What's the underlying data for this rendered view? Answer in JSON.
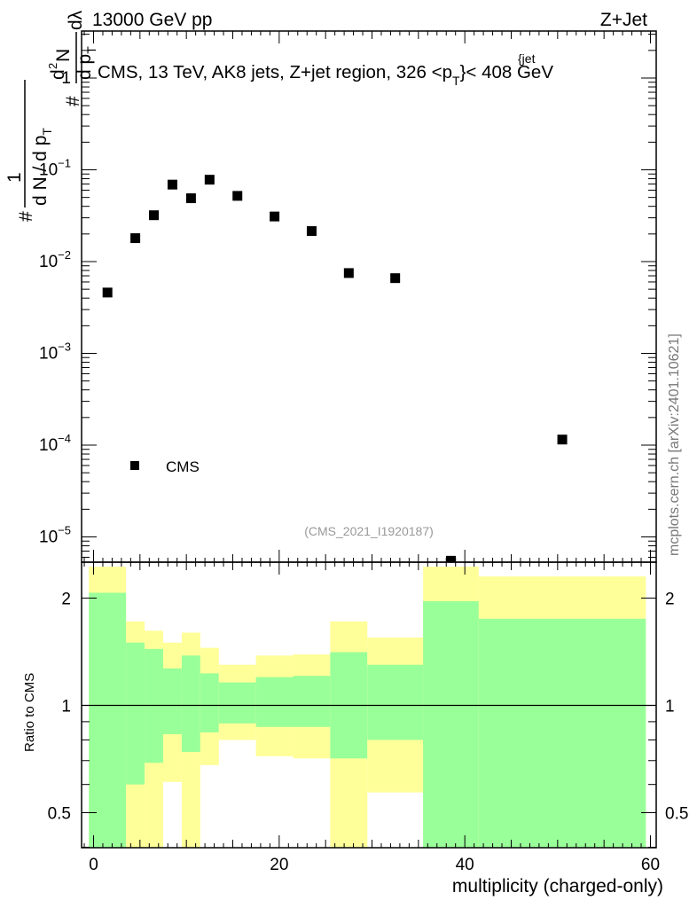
{
  "header": {
    "left": "13000 GeV pp",
    "right": "Z+Jet"
  },
  "watermark": "mcplots.cern.ch [arXiv:2401.10621]",
  "analysis_tag": "(CMS_2021_I1920187)",
  "legend": {
    "label": "CMS",
    "position": "lower-left"
  },
  "top_panel": {
    "title_main": "CMS, 13 TeV, AK8 jets, Z+jet region, 326 <p",
    "title_sup": "{jet",
    "title_sub": "T",
    "title_end": "}< 408 GeV",
    "ylabel_frac_top": "1",
    "ylabel_prefix": "#",
    "ylabel_den": "d N / d p",
    "ylabel_den_sub": "T",
    "ylabel_num_hash": "#",
    "ylabel_num_d": "d",
    "ylabel_num_N": "N",
    "ylabel_num_sup": "2",
    "ylabel_num_rest": "d p",
    "ylabel_num_sub": "T",
    "ylabel_num_end": "dλ",
    "y_ticks": [
      {
        "mant": "1",
        "exp": ""
      },
      {
        "mant": "10",
        "exp": "−1"
      },
      {
        "mant": "10",
        "exp": "−2"
      },
      {
        "mant": "10",
        "exp": "−3"
      },
      {
        "mant": "10",
        "exp": "−4"
      },
      {
        "mant": "10",
        "exp": "−5"
      }
    ]
  },
  "ratio_panel": {
    "ylabel": "Ratio to CMS",
    "y_ticks": [
      "2",
      "1",
      "0.5"
    ]
  },
  "x_axis": {
    "label": "multiplicity (charged-only)",
    "ticks": [
      "0",
      "20",
      "40",
      "60"
    ]
  },
  "colors": {
    "band_outer": "#ffff99",
    "band_inner": "#99ff99",
    "marker": "#000000"
  },
  "chart_data": {
    "type": "scatter",
    "xlabel": "multiplicity (charged-only)",
    "xlim": [
      -1,
      60
    ],
    "top": {
      "yscale": "log",
      "ylim": [
        5.2e-06,
        3.2
      ],
      "series": [
        {
          "name": "CMS",
          "x": [
            1.5,
            4.5,
            6.5,
            8.5,
            10.5,
            12.5,
            15.5,
            19.5,
            23.5,
            27.5,
            32.5,
            38.5,
            50.5
          ],
          "y": [
            0.0046,
            0.018,
            0.032,
            0.069,
            0.049,
            0.078,
            0.052,
            0.031,
            0.0215,
            0.0075,
            0.0066,
            5.5e-06,
            0.000115
          ]
        }
      ]
    },
    "ratio": {
      "yscale": "log",
      "ylim": [
        0.37,
        2.45
      ],
      "reference_line": 1,
      "bins": [
        {
          "lo": -0.5,
          "hi": 3.5,
          "outer": [
            0.37,
            2.45
          ],
          "inner": [
            0.37,
            2.07
          ]
        },
        {
          "lo": 3.5,
          "hi": 5.5,
          "outer": [
            0.37,
            1.72
          ],
          "inner": [
            0.6,
            1.5
          ]
        },
        {
          "lo": 5.5,
          "hi": 7.5,
          "outer": [
            0.4,
            1.62
          ],
          "inner": [
            0.69,
            1.44
          ]
        },
        {
          "lo": 7.5,
          "hi": 9.5,
          "outer": [
            0.61,
            1.5
          ],
          "inner": [
            0.83,
            1.27
          ]
        },
        {
          "lo": 9.5,
          "hi": 11.5,
          "outer": [
            0.4,
            1.6
          ],
          "inner": [
            0.74,
            1.38
          ]
        },
        {
          "lo": 11.5,
          "hi": 13.5,
          "outer": [
            0.68,
            1.45
          ],
          "inner": [
            0.84,
            1.23
          ]
        },
        {
          "lo": 13.5,
          "hi": 17.5,
          "outer": [
            0.8,
            1.3
          ],
          "inner": [
            0.89,
            1.16
          ]
        },
        {
          "lo": 17.5,
          "hi": 21.5,
          "outer": [
            0.72,
            1.38
          ],
          "inner": [
            0.87,
            1.2
          ]
        },
        {
          "lo": 21.5,
          "hi": 25.5,
          "outer": [
            0.71,
            1.39
          ],
          "inner": [
            0.87,
            1.21
          ]
        },
        {
          "lo": 25.5,
          "hi": 29.5,
          "outer": [
            0.4,
            1.72
          ],
          "inner": [
            0.71,
            1.41
          ]
        },
        {
          "lo": 29.5,
          "hi": 35.5,
          "outer": [
            0.57,
            1.55
          ],
          "inner": [
            0.8,
            1.3
          ]
        },
        {
          "lo": 35.5,
          "hi": 41.5,
          "outer": [
            0.37,
            2.45
          ],
          "inner": [
            0.37,
            1.96
          ]
        },
        {
          "lo": 41.5,
          "hi": 59.5,
          "outer": [
            0.37,
            2.3
          ],
          "inner": [
            0.37,
            1.75
          ]
        }
      ]
    }
  }
}
